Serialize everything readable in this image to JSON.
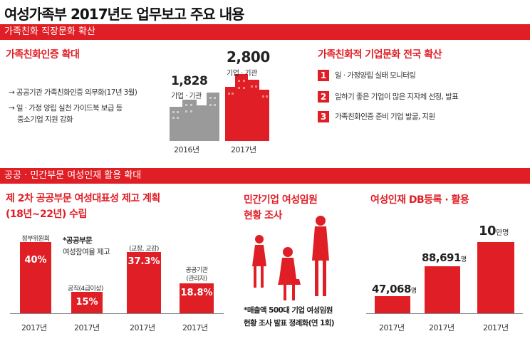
{
  "title": "여성가족부 2017년도 업무보고 주요 내용",
  "section1": {
    "band": "가족친화 직장문화 확산",
    "left_heading": "가족친화인증 확대",
    "bullets": [
      "→ 공공기관 가족친화인증 의무화(17년 3월)",
      "→ 일 · 가정 양립 실천 가이드북 보급 등",
      "중소기업 지원 강화"
    ],
    "bar2016_value": "1,828",
    "bar2016_unit": "기업 · 기관",
    "bar2017_value": "2,800",
    "bar2017_unit": "기업 · 기관",
    "year2016": "2016년",
    "year2017": "2017년",
    "right_heading": "가족친화적 기업문화 전국 확산",
    "items": [
      {
        "n": "1",
        "text": "일 · 가정양립 실태 모니터링"
      },
      {
        "n": "2",
        "text": "일하기 좋은 기업이 많은 지자체 선정, 발표"
      },
      {
        "n": "3",
        "text": "가족친화인증 준비 기업 발굴, 지원"
      }
    ]
  },
  "section2": {
    "band": "공공 · 민간부문 여성인재 활용 확대",
    "left_heading_1": "제 2차 공공부문 여성대표성 제고 계획",
    "left_heading_2": "(18년~22년) 수립",
    "note_1": "*공공부문",
    "note_2": "여성참여율 제고",
    "bars": [
      {
        "label": "정부위원회",
        "value": "40%",
        "year": "2017년"
      },
      {
        "label": "공직(4급이상)",
        "value": "15%",
        "year": "2017년"
      },
      {
        "label": "(교장, 교감)",
        "value": "37.3%",
        "year": "2017년"
      },
      {
        "label": "공공기관",
        "label2": "(관리자)",
        "value": "18.8%",
        "year": "2017년"
      }
    ],
    "mid_heading_1": "민간기업 여성임원",
    "mid_heading_2": "현황 조사",
    "mid_note_1": "*매출액 500대 기업 여성임원",
    "mid_note_2": "현황 조사 발표 정례화(연 1회)",
    "right_heading": "여성인재 DB등록 · 활용",
    "db": [
      {
        "num": "47,068",
        "unit": "명",
        "year": "2017년"
      },
      {
        "num": "88,691",
        "unit": "명",
        "year": "2017년"
      },
      {
        "num": "10",
        "unit": "만명",
        "year": "2017년"
      }
    ]
  }
}
